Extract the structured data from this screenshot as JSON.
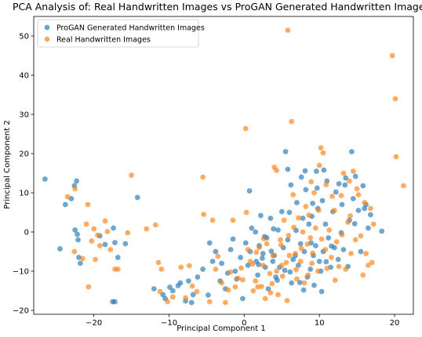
{
  "chart_data": {
    "type": "scatter",
    "title": "PCA Analysis of: Real Handwritten Images vs ProGAN Generated Handwritten Images",
    "xlabel": "Principal Component 1",
    "ylabel": "Principal Component 2",
    "xlim": [
      -28,
      22.5
    ],
    "ylim": [
      -21,
      55
    ],
    "xticks": [
      -20,
      -10,
      0,
      10,
      20
    ],
    "xtick_labels": [
      "−20",
      "−10",
      "0",
      "10",
      "20"
    ],
    "yticks": [
      -20,
      -10,
      0,
      10,
      20,
      30,
      40,
      50
    ],
    "ytick_labels": [
      "−20",
      "−10",
      "0",
      "10",
      "20",
      "30",
      "40",
      "50"
    ],
    "grid": false,
    "legend_position": "upper-left",
    "series": [
      {
        "name": "ProGAN Generated Handwritten Images",
        "color": "#1f77b4",
        "points": [
          [
            -26.5,
            13.5
          ],
          [
            -22.3,
            13
          ],
          [
            -22.6,
            11.8
          ],
          [
            -23,
            8.5
          ],
          [
            -23.8,
            7
          ],
          [
            -24.5,
            -4.3
          ],
          [
            -22.5,
            0.5
          ],
          [
            -22.2,
            -0.6
          ],
          [
            -22.1,
            -2
          ],
          [
            -21.8,
            -8
          ],
          [
            -22,
            -6.5
          ],
          [
            -19.2,
            -1
          ],
          [
            -18.5,
            -3.2
          ],
          [
            -17.4,
            1
          ],
          [
            -17.2,
            -2.7
          ],
          [
            -16.8,
            -6.5
          ],
          [
            -15.8,
            -3
          ],
          [
            -17.5,
            -17.8
          ],
          [
            -17.2,
            -17.8
          ],
          [
            -14.2,
            8.8
          ],
          [
            -12,
            -14.5
          ],
          [
            -10.8,
            -16
          ],
          [
            -10.5,
            -17
          ],
          [
            -9.5,
            -15
          ],
          [
            -8.5,
            -13
          ],
          [
            -7.8,
            -17.6
          ],
          [
            -7.4,
            -12.5
          ],
          [
            -7,
            -18
          ],
          [
            -6.8,
            -16
          ],
          [
            -6.2,
            -11.5
          ],
          [
            -5.5,
            -9.5
          ],
          [
            -4.6,
            -2.8
          ],
          [
            -4.2,
            -7.5
          ],
          [
            -3.8,
            -5
          ],
          [
            -3.2,
            -12.5
          ],
          [
            -3,
            -8
          ],
          [
            -2.5,
            -14.5
          ],
          [
            -2.2,
            -10.5
          ],
          [
            -1.8,
            -4.5
          ],
          [
            -1.2,
            -10
          ],
          [
            -1,
            -12
          ],
          [
            -0.5,
            -6.5
          ],
          [
            -0.2,
            -17
          ],
          [
            0.2,
            -2.8
          ],
          [
            0.5,
            -8.5
          ],
          [
            0.8,
            -5
          ],
          [
            1,
            1
          ],
          [
            1.5,
            0
          ],
          [
            1.6,
            -7.5
          ],
          [
            1.8,
            -11
          ],
          [
            2,
            -3.5
          ],
          [
            2.2,
            4.2
          ],
          [
            2.5,
            -5.5
          ],
          [
            2.8,
            -9
          ],
          [
            3,
            -1.5
          ],
          [
            3.2,
            -14.5
          ],
          [
            3.5,
            3.5
          ],
          [
            3.8,
            -7.5
          ],
          [
            4,
            -6
          ],
          [
            4.2,
            -11.5
          ],
          [
            4.5,
            0.5
          ],
          [
            4.7,
            -9
          ],
          [
            5,
            5.2
          ],
          [
            5.2,
            -4
          ],
          [
            5.5,
            20.5
          ],
          [
            5.8,
            -2
          ],
          [
            6,
            5
          ],
          [
            6.2,
            12
          ],
          [
            6.3,
            -13
          ],
          [
            6.5,
            -7
          ],
          [
            6.8,
            -6
          ],
          [
            7,
            7.5
          ],
          [
            7.2,
            -8.5
          ],
          [
            7.5,
            -3
          ],
          [
            7.8,
            3.5
          ],
          [
            8,
            -5
          ],
          [
            8.2,
            10.8
          ],
          [
            8.4,
            -11.5
          ],
          [
            8.6,
            2
          ],
          [
            8.8,
            -9.5
          ],
          [
            9,
            4
          ],
          [
            9.2,
            -6
          ],
          [
            9.5,
            -3.5
          ],
          [
            9.6,
            15.5
          ],
          [
            9.8,
            6
          ],
          [
            10,
            -7.5
          ],
          [
            10.2,
            -10
          ],
          [
            10.4,
            8
          ],
          [
            10.5,
            -5
          ],
          [
            10.8,
            2
          ],
          [
            11,
            13
          ],
          [
            11.2,
            -1.5
          ],
          [
            11.5,
            -9
          ],
          [
            11.8,
            5.2
          ],
          [
            12,
            -4
          ],
          [
            12.2,
            10.2
          ],
          [
            12.5,
            -7
          ],
          [
            12.6,
            12.3
          ],
          [
            13,
            7
          ],
          [
            13.2,
            -4.5
          ],
          [
            13.5,
            13.8
          ],
          [
            13.8,
            -8.8
          ],
          [
            14,
            3
          ],
          [
            14.3,
            20.5
          ],
          [
            14.5,
            8.5
          ],
          [
            14.8,
            14.2
          ],
          [
            15.2,
            5.5
          ],
          [
            15.5,
            -5
          ],
          [
            16,
            6
          ],
          [
            16.2,
            7
          ],
          [
            16.5,
            1
          ],
          [
            18.3,
            0.2
          ],
          [
            7.6,
            14
          ],
          [
            9.1,
            7.3
          ],
          [
            6.9,
            0.4
          ],
          [
            5.4,
            -9.8
          ],
          [
            3.9,
            0.8
          ],
          [
            2.7,
            -1.2
          ],
          [
            8.9,
            -2.8
          ],
          [
            10.9,
            -7.6
          ],
          [
            12.9,
            -0.2
          ],
          [
            14.7,
            2.1
          ],
          [
            11.6,
            -3.6
          ],
          [
            9.3,
            -13.6
          ],
          [
            7.4,
            -12.9
          ],
          [
            6.1,
            -10.2
          ],
          [
            4.4,
            -12.3
          ],
          [
            3.6,
            -4.9
          ],
          [
            2.4,
            -6.7
          ],
          [
            1.9,
            -8.3
          ],
          [
            -8.8,
            -13.7
          ],
          [
            -9.9,
            -14.1
          ],
          [
            -4.8,
            -16.1
          ],
          [
            -1.5,
            -1.8
          ],
          [
            0.7,
            10.5
          ],
          [
            5.8,
            16
          ],
          [
            10.6,
            15.8
          ],
          [
            13.4,
            12
          ],
          [
            15.8,
            11.8
          ],
          [
            16.8,
            4.4
          ],
          [
            9.7,
            11.2
          ],
          [
            8.1,
            15.6
          ],
          [
            7.9,
            -14.8
          ],
          [
            10.3,
            -15.2
          ]
        ]
      },
      {
        "name": "Real Handwritten Images",
        "color": "#ff7f0e",
        "points": [
          [
            5.8,
            51.5
          ],
          [
            19.7,
            45
          ],
          [
            20.1,
            34
          ],
          [
            6.3,
            28.2
          ],
          [
            0.2,
            26.4
          ],
          [
            20.2,
            19.2
          ],
          [
            21.2,
            11.8
          ],
          [
            -15,
            14.5
          ],
          [
            -23.5,
            9
          ],
          [
            -22.5,
            11
          ],
          [
            -20.8,
            7
          ],
          [
            -21,
            2
          ],
          [
            -20,
            0.8
          ],
          [
            -19.5,
            -0.8
          ],
          [
            -20.3,
            -2.3
          ],
          [
            -18.5,
            2.8
          ],
          [
            -18.2,
            0.1
          ],
          [
            -17.8,
            -4.5
          ],
          [
            -19.2,
            -3.5
          ],
          [
            -19.8,
            -7
          ],
          [
            -20.7,
            -14
          ],
          [
            -22.6,
            -5
          ],
          [
            -21.5,
            -6.8
          ],
          [
            -16.8,
            -9.5
          ],
          [
            -17.2,
            -9.5
          ],
          [
            -15.5,
            -0.2
          ],
          [
            -13,
            0.8
          ],
          [
            -11.8,
            1.8
          ],
          [
            -11.4,
            -7.8
          ],
          [
            -11,
            -9.5
          ],
          [
            -11.2,
            -15.2
          ],
          [
            -8.4,
            -9
          ],
          [
            -7.8,
            -16.8
          ],
          [
            -7.3,
            -8.6
          ],
          [
            -6.9,
            -13.8
          ],
          [
            -5.4,
            4.5
          ],
          [
            -5.5,
            14
          ],
          [
            -4.2,
            3
          ],
          [
            -3.8,
            -9.5
          ],
          [
            -3.5,
            -6.2
          ],
          [
            -3,
            -13
          ],
          [
            -2.5,
            -18
          ],
          [
            -1.5,
            3
          ],
          [
            -1.2,
            -14
          ],
          [
            -0.8,
            -11.8
          ],
          [
            -0.2,
            -12.2
          ],
          [
            0.3,
            5
          ],
          [
            0.5,
            -4.5
          ],
          [
            0.8,
            -7.5
          ],
          [
            1.2,
            -15
          ],
          [
            1.5,
            -12.5
          ],
          [
            1.8,
            -14
          ],
          [
            2,
            -4
          ],
          [
            2.5,
            -8.5
          ],
          [
            2.8,
            -17
          ],
          [
            3,
            -3
          ],
          [
            3.5,
            -15.5
          ],
          [
            3.8,
            -6
          ],
          [
            4,
            16.5
          ],
          [
            4.3,
            -10
          ],
          [
            4.5,
            -16
          ],
          [
            4.8,
            -2
          ],
          [
            5,
            -8.5
          ],
          [
            5.3,
            3
          ],
          [
            5.6,
            -7.8
          ],
          [
            5.7,
            -17.5
          ],
          [
            6,
            -6
          ],
          [
            6.5,
            9.5
          ],
          [
            6.8,
            -5.5
          ],
          [
            7,
            -12
          ],
          [
            7.5,
            -7.5
          ],
          [
            7.8,
            0
          ],
          [
            8,
            -13
          ],
          [
            8.2,
            6.5
          ],
          [
            8.5,
            -11
          ],
          [
            8.8,
            -1.5
          ],
          [
            9,
            -8
          ],
          [
            9.3,
            10
          ],
          [
            9.5,
            1
          ],
          [
            9.8,
            -10
          ],
          [
            10,
            17
          ],
          [
            10.2,
            21.5
          ],
          [
            10.5,
            20.2
          ],
          [
            10.8,
            -4.5
          ],
          [
            11,
            -9.3
          ],
          [
            11.3,
            0.5
          ],
          [
            11.6,
            -6.5
          ],
          [
            12,
            5.5
          ],
          [
            12.3,
            -2.5
          ],
          [
            12.6,
            -8.8
          ],
          [
            13,
            -0.7
          ],
          [
            13.2,
            15
          ],
          [
            13.5,
            -9.5
          ],
          [
            13.8,
            2.5
          ],
          [
            14,
            13
          ],
          [
            14.2,
            -5.5
          ],
          [
            14.5,
            15.5
          ],
          [
            14.8,
            -2
          ],
          [
            15,
            11
          ],
          [
            15.2,
            9.5
          ],
          [
            15.5,
            -1
          ],
          [
            15.8,
            -11
          ],
          [
            16,
            7.5
          ],
          [
            16.2,
            -5.5
          ],
          [
            16.5,
            -8.5
          ],
          [
            16.8,
            6
          ],
          [
            17,
            -7.8
          ],
          [
            17.2,
            2
          ],
          [
            12.9,
            9.3
          ],
          [
            11.7,
            9.1
          ],
          [
            10.9,
            12.1
          ],
          [
            9.9,
            5.5
          ],
          [
            8.6,
            4.3
          ],
          [
            7.2,
            3.6
          ],
          [
            6.6,
            1.2
          ],
          [
            5.9,
            -0.9
          ],
          [
            4.9,
            -3.3
          ],
          [
            3.4,
            -10.6
          ],
          [
            2.3,
            -13.9
          ],
          [
            1.1,
            -8.2
          ],
          [
            -0.4,
            -9.2
          ],
          [
            -2.1,
            -14.8
          ],
          [
            -6.3,
            -15.2
          ],
          [
            -9.5,
            -16.6
          ],
          [
            -10.2,
            -17.8
          ],
          [
            -4.6,
            -17.8
          ],
          [
            7.6,
            -4.2
          ],
          [
            8.4,
            -3.1
          ],
          [
            10.3,
            -1.8
          ],
          [
            12.1,
            -12.3
          ],
          [
            14.1,
            4.1
          ],
          [
            9.1,
            -5.4
          ],
          [
            6.9,
            -9.6
          ],
          [
            5.1,
            -11.3
          ],
          [
            3.7,
            -13.2
          ],
          [
            2.6,
            -1.7
          ],
          [
            1.6,
            -5.2
          ],
          [
            -1.8,
            -10.2
          ],
          [
            4.3,
            15.7
          ],
          [
            8.9,
            12.8
          ]
        ]
      }
    ]
  }
}
